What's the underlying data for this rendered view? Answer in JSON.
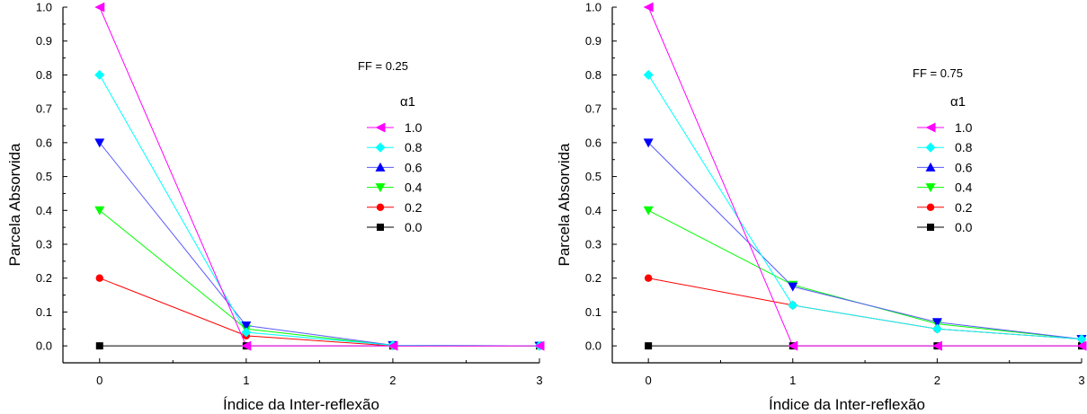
{
  "chart_data": [
    {
      "type": "line",
      "annotation": "FF = 0.25",
      "xlabel": "Índice da Inter-reflexão",
      "ylabel": "Parcela Absorvida",
      "xlim": [
        -0.25,
        3
      ],
      "ylim": [
        -0.05,
        1.0
      ],
      "x": [
        0,
        1,
        2,
        3
      ],
      "xticks": [
        "0",
        "1",
        "2",
        "3"
      ],
      "yticks": [
        "0.0",
        "0.1",
        "0.2",
        "0.3",
        "0.4",
        "0.5",
        "0.6",
        "0.7",
        "0.8",
        "0.9",
        "1.0"
      ],
      "legend_title": "α1",
      "legend_position": "right",
      "grid": false,
      "series": [
        {
          "name": "1.0",
          "color": "#ff00ff",
          "marker": "triangle-left",
          "values": [
            1.0,
            0.0,
            0.0,
            0.0
          ]
        },
        {
          "name": "0.8",
          "color": "#00ffff",
          "marker": "diamond",
          "values": [
            0.8,
            0.04,
            0.002,
            0.0
          ]
        },
        {
          "name": "0.6",
          "color": "#0000ff",
          "marker": "triangle-up",
          "line_color": "#5a5aff",
          "values": [
            0.6,
            0.06,
            0.002,
            0.0
          ]
        },
        {
          "name": "0.4",
          "color": "#00ff00",
          "marker": "triangle-down",
          "values": [
            0.4,
            0.05,
            0.001,
            0.0
          ]
        },
        {
          "name": "0.2",
          "color": "#ff0000",
          "marker": "circle",
          "values": [
            0.2,
            0.03,
            0.0,
            0.0
          ]
        },
        {
          "name": "0.0",
          "color": "#000000",
          "marker": "square",
          "values": [
            0.0,
            0.0,
            0.0,
            0.0
          ]
        }
      ],
      "plotted_markers": {
        "0.6": "triangle-down"
      }
    },
    {
      "type": "line",
      "annotation": "FF = 0.75",
      "xlabel": "Índice da Inter-reflexão",
      "ylabel": "Parcela Absorvida",
      "xlim": [
        -0.25,
        3
      ],
      "ylim": [
        -0.05,
        1.0
      ],
      "x": [
        0,
        1,
        2,
        3
      ],
      "xticks": [
        "0",
        "1",
        "2",
        "3"
      ],
      "yticks": [
        "0.0",
        "0.1",
        "0.2",
        "0.3",
        "0.4",
        "0.5",
        "0.6",
        "0.7",
        "0.8",
        "0.9",
        "1.0"
      ],
      "legend_title": "α1",
      "legend_position": "right",
      "grid": false,
      "series": [
        {
          "name": "1.0",
          "color": "#ff00ff",
          "marker": "triangle-left",
          "values": [
            1.0,
            0.0,
            0.0,
            0.0
          ]
        },
        {
          "name": "0.8",
          "color": "#00ffff",
          "marker": "diamond",
          "values": [
            0.8,
            0.12,
            0.05,
            0.02
          ]
        },
        {
          "name": "0.6",
          "color": "#0000ff",
          "marker": "triangle-up",
          "line_color": "#5a5aff",
          "values": [
            0.6,
            0.175,
            0.07,
            0.02
          ]
        },
        {
          "name": "0.4",
          "color": "#00ff00",
          "marker": "triangle-down",
          "values": [
            0.4,
            0.18,
            0.065,
            0.02
          ]
        },
        {
          "name": "0.2",
          "color": "#ff0000",
          "marker": "circle",
          "values": [
            0.2,
            0.12,
            0.05,
            0.02
          ]
        },
        {
          "name": "0.0",
          "color": "#000000",
          "marker": "square",
          "values": [
            0.0,
            0.0,
            0.0,
            0.0
          ]
        }
      ],
      "plotted_markers": {
        "0.6": "triangle-down"
      }
    }
  ]
}
